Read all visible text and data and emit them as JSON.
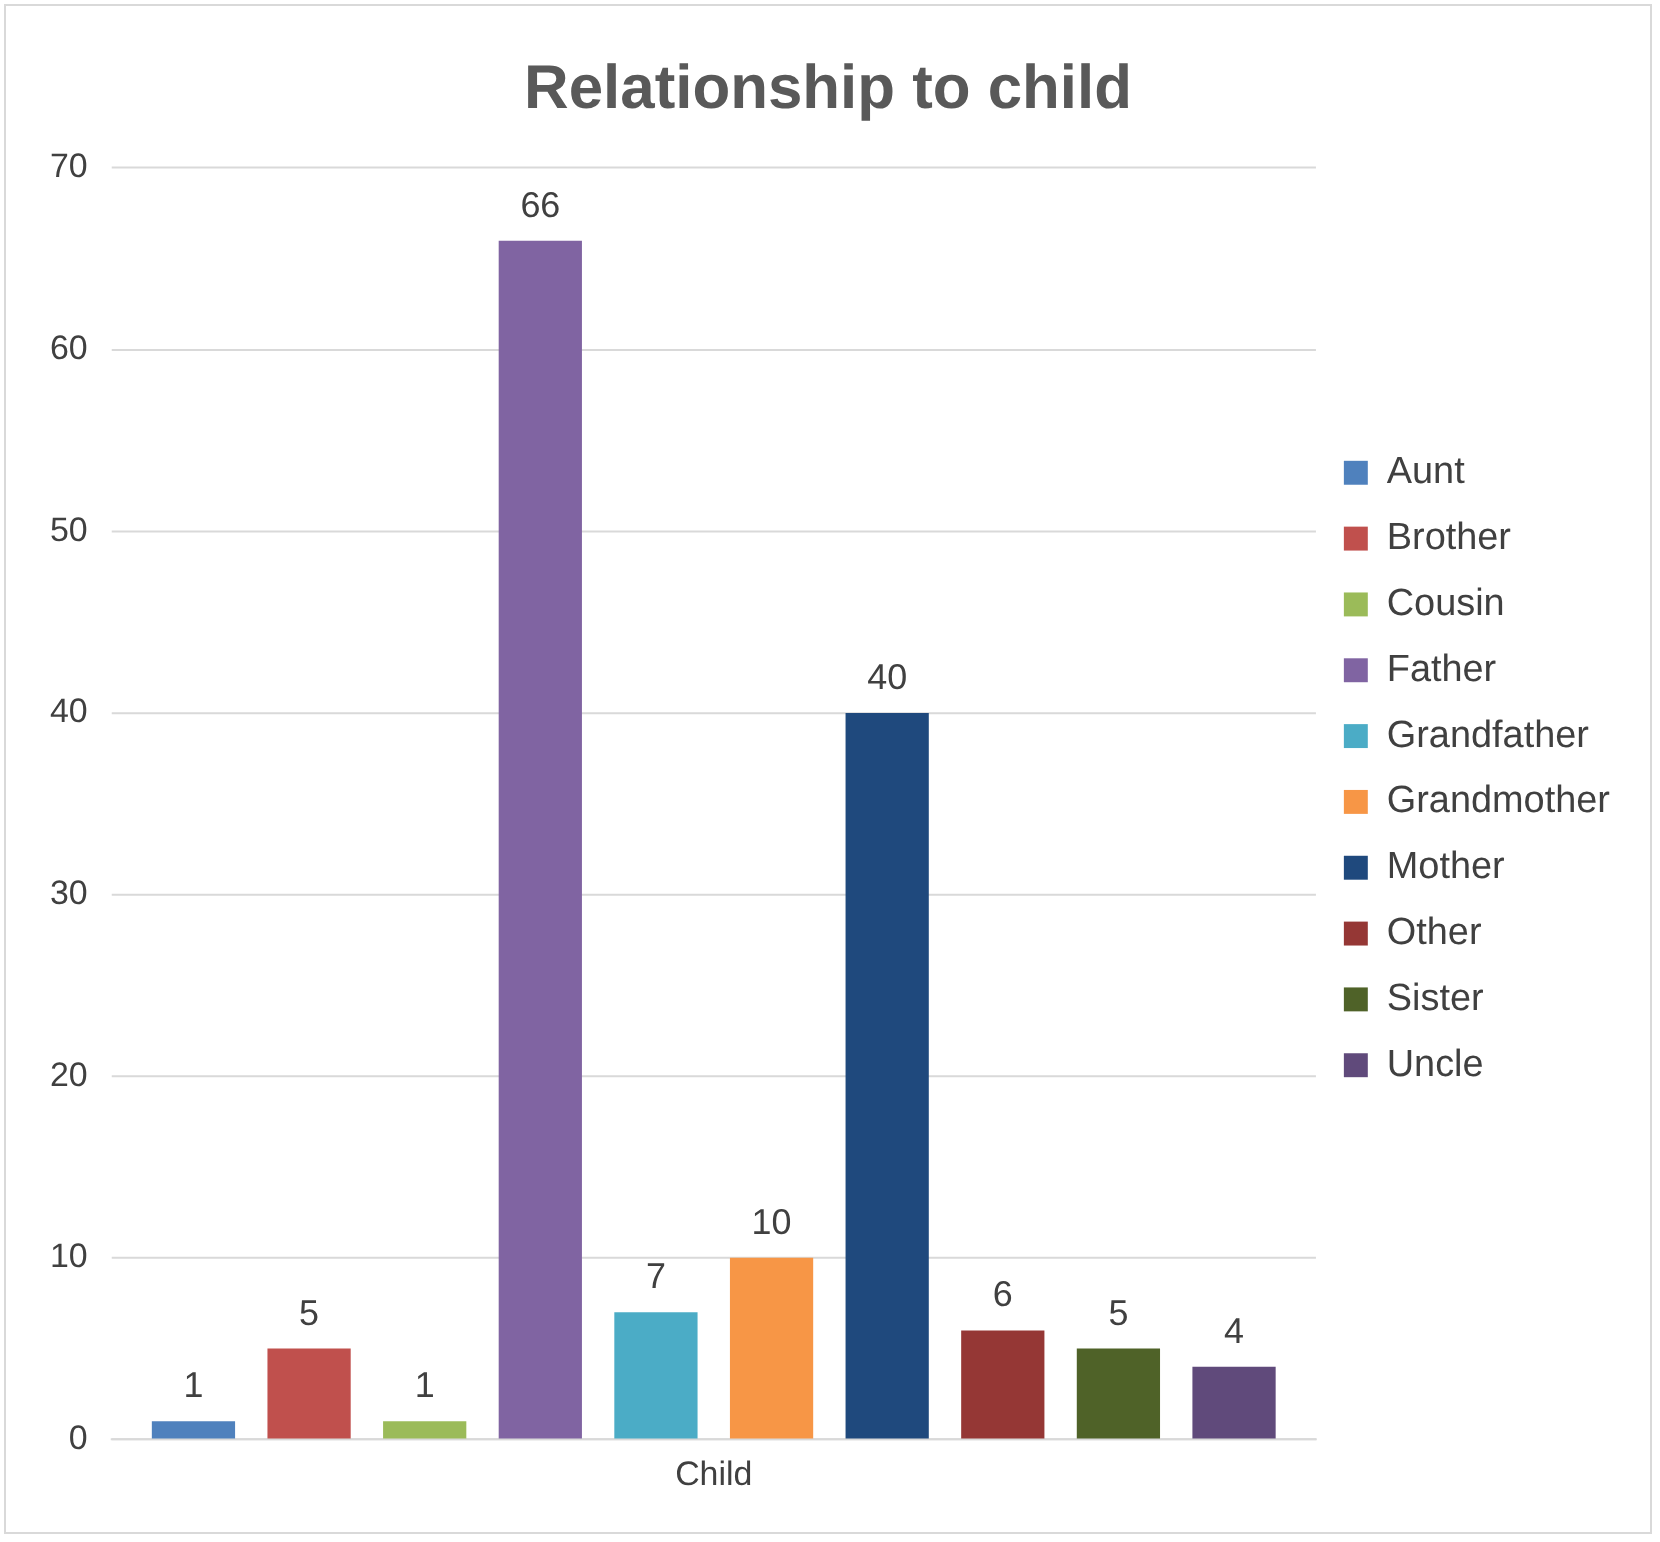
{
  "chart_data": {
    "type": "bar",
    "title": "Relationship to child",
    "categories": [
      "Child"
    ],
    "series": [
      {
        "name": "Aunt",
        "color": "#4f81bd",
        "values": [
          1
        ]
      },
      {
        "name": "Brother",
        "color": "#c0504d",
        "values": [
          5
        ]
      },
      {
        "name": "Cousin",
        "color": "#9bbb59",
        "values": [
          1
        ]
      },
      {
        "name": "Father",
        "color": "#8064a2",
        "values": [
          66
        ]
      },
      {
        "name": "Grandfather",
        "color": "#4bacc6",
        "values": [
          7
        ]
      },
      {
        "name": "Grandmother",
        "color": "#f79646",
        "values": [
          10
        ]
      },
      {
        "name": "Mother",
        "color": "#1f497d",
        "values": [
          40
        ]
      },
      {
        "name": "Other",
        "color": "#953735",
        "values": [
          6
        ]
      },
      {
        "name": "Sister",
        "color": "#4f6228",
        "values": [
          5
        ]
      },
      {
        "name": "Uncle",
        "color": "#604a7b",
        "values": [
          4
        ]
      }
    ],
    "ylim": [
      0,
      70
    ],
    "yticks": [
      0,
      10,
      20,
      30,
      40,
      50,
      60,
      70
    ],
    "grid": "y",
    "legend": "right",
    "data_labels": true
  }
}
